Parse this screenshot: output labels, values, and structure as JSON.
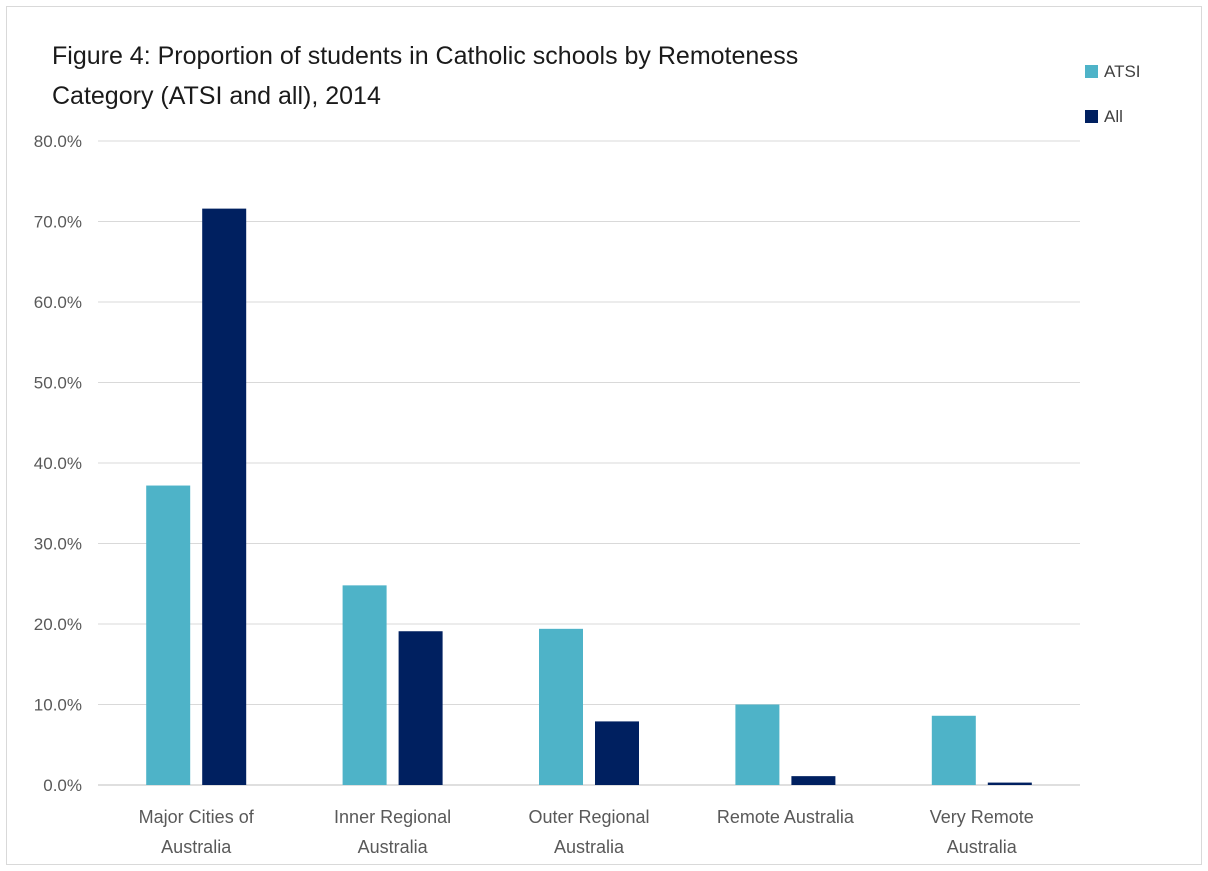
{
  "chart_data": {
    "type": "bar",
    "title_lines": [
      "Figure 4: Proportion of students in Catholic schools by Remoteness",
      "Category (ATSI and all), 2014"
    ],
    "categories": [
      [
        "Major Cities of",
        "Australia"
      ],
      [
        "Inner Regional",
        "Australia"
      ],
      [
        "Outer Regional",
        "Australia"
      ],
      [
        "Remote Australia"
      ],
      [
        "Very Remote",
        "Australia"
      ]
    ],
    "series": [
      {
        "name": "ATSI",
        "color": "#4eb3c8",
        "values": [
          37.2,
          24.8,
          19.4,
          10.0,
          8.6
        ]
      },
      {
        "name": "All",
        "color": "#002060",
        "values": [
          71.6,
          19.1,
          7.9,
          1.1,
          0.3
        ]
      }
    ],
    "y_ticks": [
      "0.0%",
      "10.0%",
      "20.0%",
      "30.0%",
      "40.0%",
      "50.0%",
      "60.0%",
      "70.0%",
      "80.0%"
    ],
    "ylim": [
      0,
      80
    ],
    "grid": true,
    "legend_position": "top-right"
  }
}
